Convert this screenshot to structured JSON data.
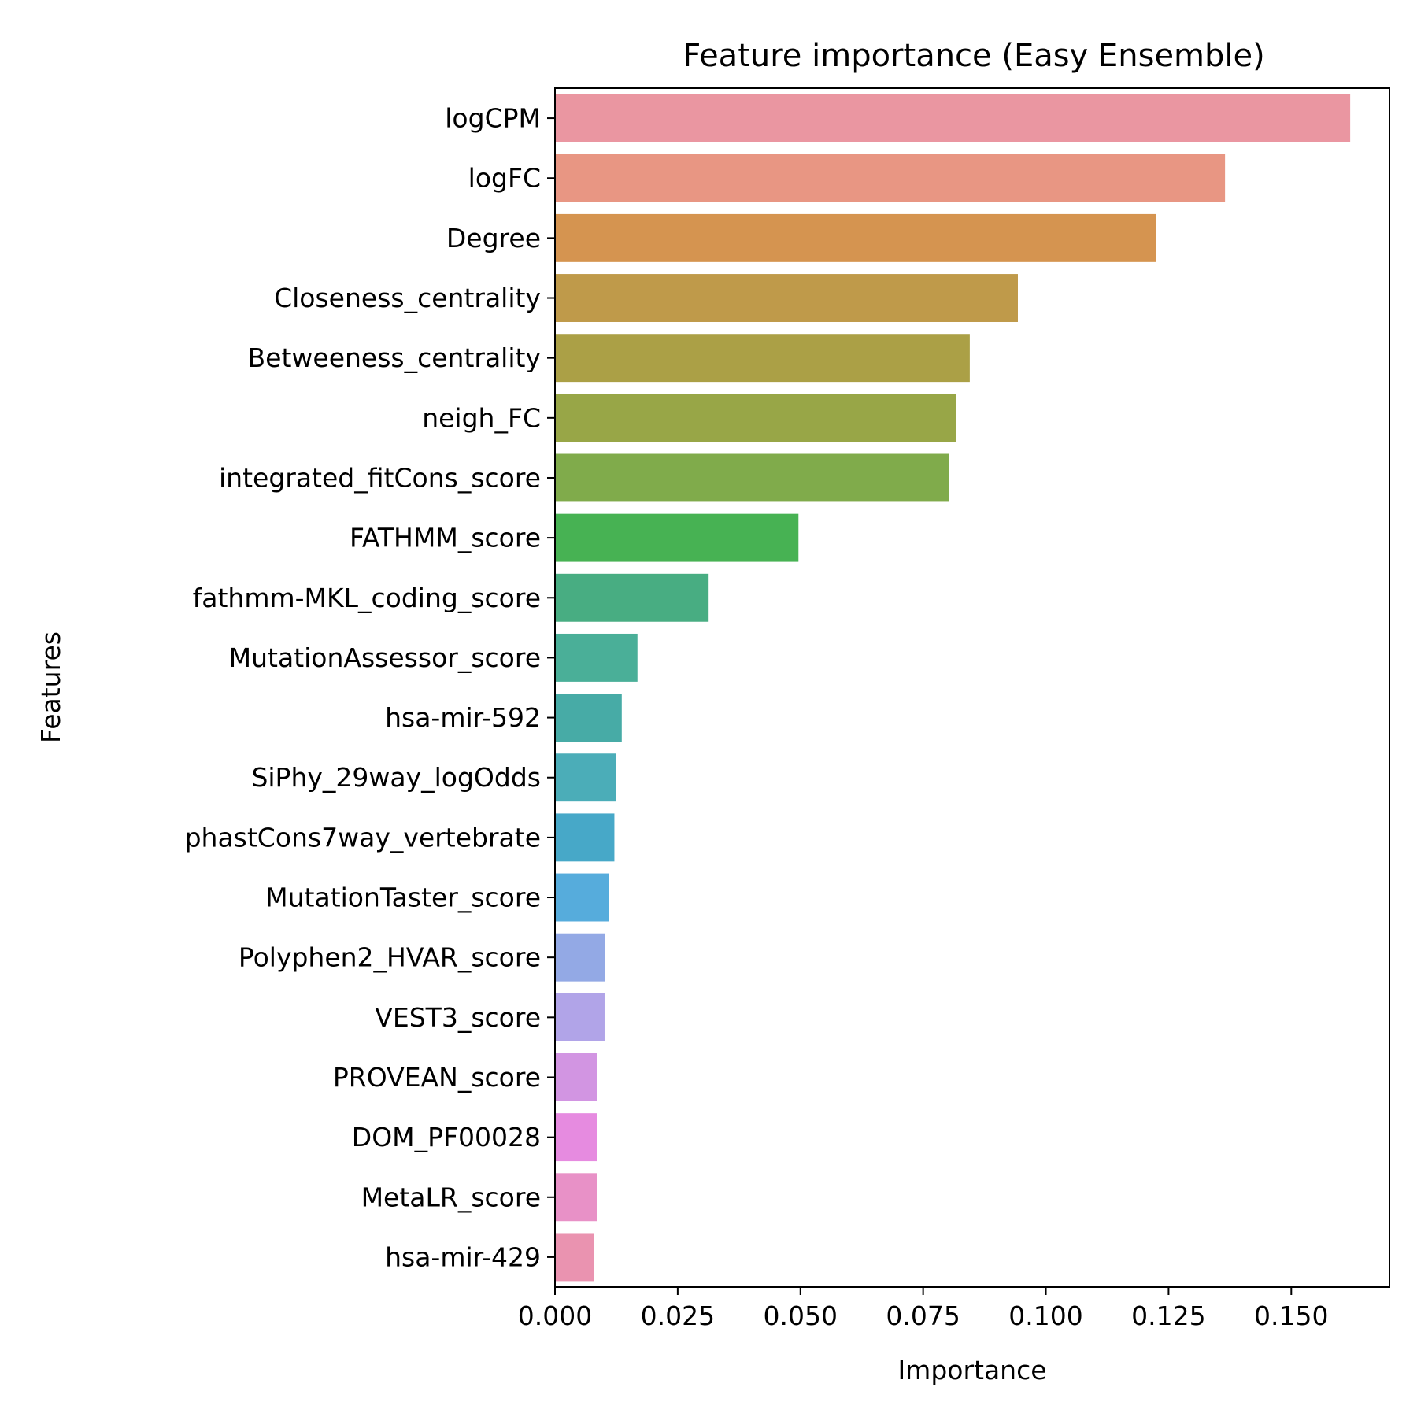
{
  "chart_data": {
    "type": "bar",
    "orientation": "horizontal",
    "title": "Feature importance (Easy Ensemble)",
    "xlabel": "Importance",
    "ylabel": "Features",
    "xlim": [
      0,
      0.17
    ],
    "xticks": [
      "0.000",
      "0.025",
      "0.050",
      "0.075",
      "0.100",
      "0.125",
      "0.150"
    ],
    "xtick_values": [
      0,
      0.025,
      0.05,
      0.075,
      0.1,
      0.125,
      0.15
    ],
    "grid": false,
    "categories": [
      "logCPM",
      "logFC",
      "Degree",
      "Closeness_centrality",
      "Betweeness_centrality",
      "neigh_FC",
      "integrated_fitCons_score",
      "FATHMM_score",
      "fathmm-MKL_coding_score",
      "MutationAssessor_score",
      "hsa-mir-592",
      "SiPhy_29way_logOdds",
      "phastCons7way_vertebrate",
      "MutationTaster_score",
      "Polyphen2_HVAR_score",
      "VEST3_score",
      "PROVEAN_score",
      "DOM_PF00028",
      "MetaLR_score",
      "hsa-mir-429"
    ],
    "values": [
      0.162,
      0.1365,
      0.1225,
      0.0943,
      0.0845,
      0.0817,
      0.0802,
      0.0496,
      0.0313,
      0.0168,
      0.0136,
      0.0124,
      0.0121,
      0.011,
      0.0102,
      0.0101,
      0.0085,
      0.0085,
      0.0085,
      0.0079
    ],
    "colors": [
      "#ea96a1",
      "#e89683",
      "#d59450",
      "#bf9a4a",
      "#aba046",
      "#98a647",
      "#80ab4b",
      "#47b253",
      "#48ad82",
      "#4aaf98",
      "#47aba6",
      "#4badb8",
      "#47a8c8",
      "#56acdc",
      "#93a9e5",
      "#b1a4e8",
      "#d295e2",
      "#e68be0",
      "#e891c7",
      "#ea93b0"
    ]
  }
}
